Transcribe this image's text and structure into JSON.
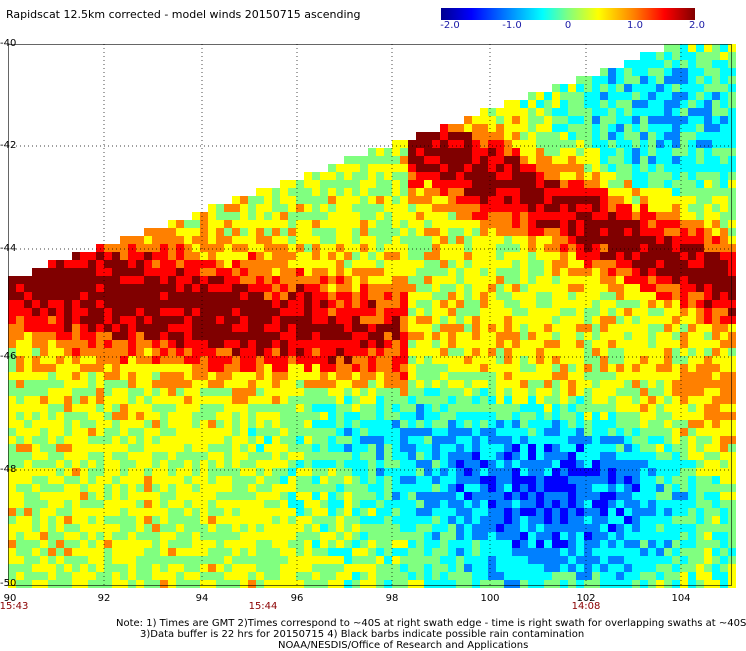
{
  "title": "Rapidscat 12.5km corrected - model winds 20150715 ascending",
  "colorbar": {
    "labels": [
      "-2.0",
      "-1.0",
      "0",
      "1.0",
      "2.0"
    ],
    "min": -2.0,
    "max": 2.0,
    "colors": [
      "#00008f",
      "#0000ff",
      "#0080ff",
      "#00ffff",
      "#80ff80",
      "#ffff00",
      "#ff8000",
      "#ff0000",
      "#800000"
    ]
  },
  "axes": {
    "lat_labels": [
      "-40",
      "-42",
      "-44",
      "-46",
      "-48",
      "-50"
    ],
    "lon_labels": [
      "90",
      "92",
      "94",
      "96",
      "98",
      "100",
      "102",
      "104"
    ],
    "lat_range": [
      -40,
      -50
    ],
    "lon_range": [
      90,
      104.9
    ]
  },
  "times": [
    {
      "label": "15:43",
      "lon": 90
    },
    {
      "label": "15:44",
      "lon": 95
    },
    {
      "label": "14:08",
      "lon": 102
    }
  ],
  "notes": [
    "Note: 1) Times are GMT 2)Times correspond to ~40S at right swath edge - time is right swath for overlapping swaths at ~40S",
    "3)Data buffer is 22 hrs for 20150715 4) Black barbs indicate possible rain contamination",
    "NOAA/NESDIS/Office of Research and Applications"
  ],
  "map": {
    "type": "heatmap",
    "description_note": "",
    "background": "#ffffff",
    "grid_color": "#000000"
  }
}
